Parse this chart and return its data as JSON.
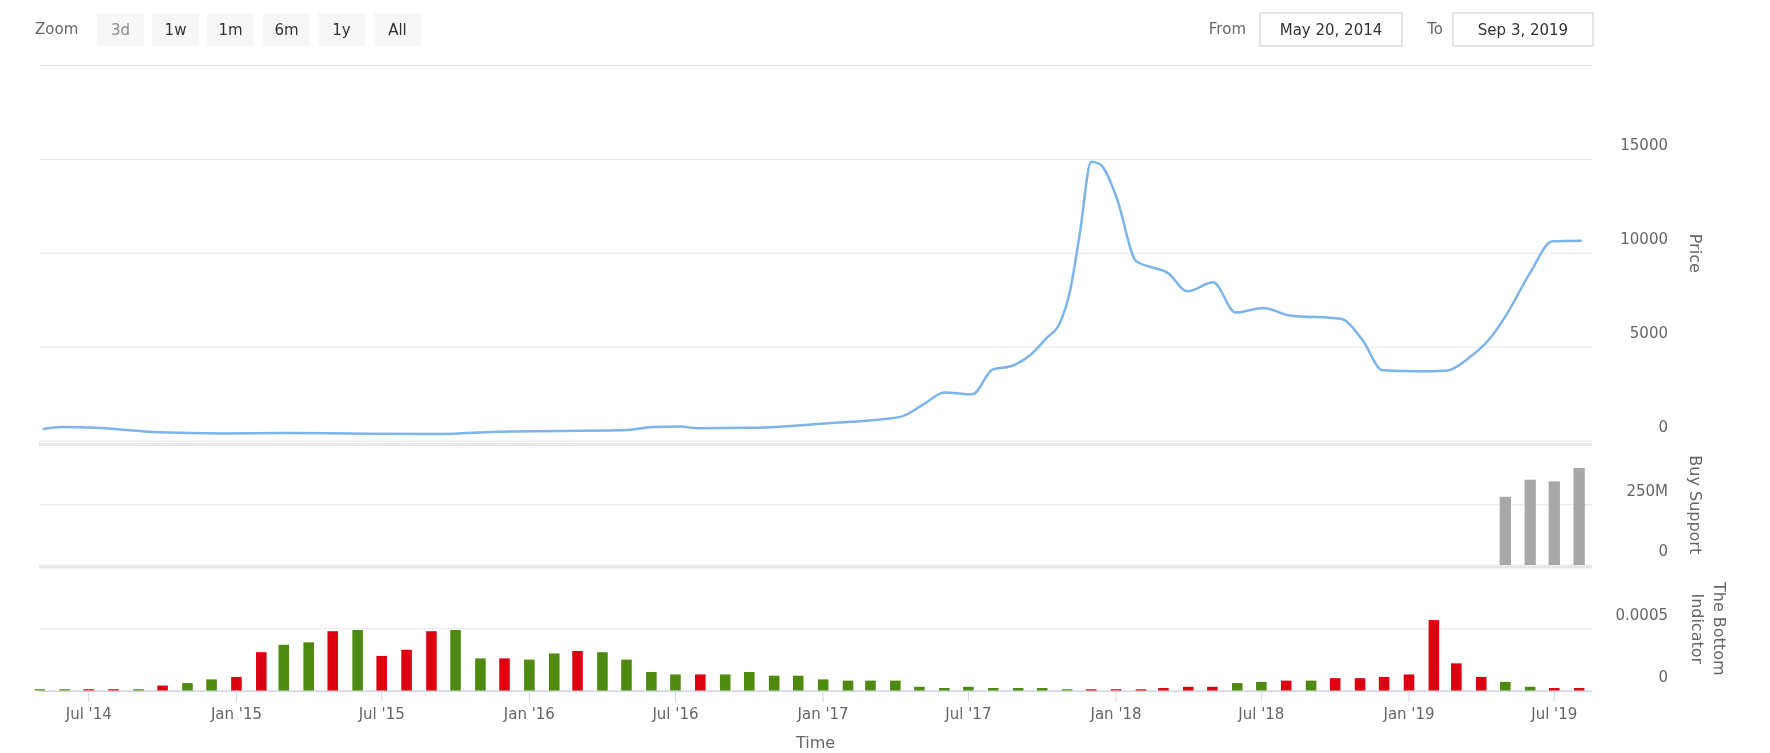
{
  "chart_data": [
    {
      "type": "line",
      "ylabel": "Price",
      "xlim": [
        "2014-04-30",
        "2019-08-17"
      ],
      "ylim": [
        0,
        20000
      ],
      "yticks": [
        0,
        5000,
        10000,
        15000
      ],
      "grid": "y",
      "tick_labels": "y",
      "annotations": [
        "Zoom",
        "3d",
        "1w",
        "1m",
        "6m",
        "1y",
        "All",
        "From",
        "May 20, 2014",
        "To",
        "Sep 3, 2019"
      ],
      "series": [
        {
          "color": "#7cb5ec",
          "x": [
            "2014-05-06",
            "2014-05-28",
            "2014-07-10",
            "2014-09-26",
            "2014-12-14",
            "2015-03-02",
            "2015-05-20",
            "2015-09-11",
            "2015-11-21",
            "2016-05-02",
            "2016-06-01",
            "2016-07-07",
            "2016-07-28",
            "2016-10-01",
            "2017-01-08",
            "2017-03-16",
            "2017-04-09",
            "2017-05-07",
            "2017-06-01",
            "2017-07-06",
            "2017-07-31",
            "2017-08-25",
            "2017-09-18",
            "2017-10-06",
            "2017-10-23",
            "2017-11-05",
            "2017-11-17",
            "2017-12-01",
            "2017-12-12",
            "2018-01-02",
            "2018-01-26",
            "2018-02-13",
            "2018-03-06",
            "2018-03-31",
            "2018-05-02",
            "2018-05-30",
            "2018-07-04",
            "2018-08-05",
            "2018-10-08",
            "2018-11-04",
            "2018-11-29",
            "2019-01-11",
            "2019-02-15",
            "2019-03-18",
            "2019-04-12",
            "2019-05-04",
            "2019-06-01",
            "2019-06-29",
            "2019-08-03"
          ],
          "values": [
            640,
            740,
            700,
            460,
            400,
            430,
            400,
            370,
            490,
            580,
            740,
            770,
            680,
            700,
            950,
            1160,
            1310,
            1980,
            2580,
            2490,
            3800,
            4010,
            4650,
            5470,
            6290,
            8060,
            11100,
            14870,
            14740,
            12920,
            9580,
            9270,
            8970,
            7970,
            8450,
            6840,
            7080,
            6690,
            6510,
            5380,
            3770,
            3710,
            3740,
            4470,
            5470,
            6840,
            8970,
            10640,
            10670
          ]
        }
      ]
    },
    {
      "type": "bar",
      "ylabel": "Buy Support",
      "xlim": [
        "2014-04-30",
        "2019-08-17"
      ],
      "ylim": [
        0,
        500000000
      ],
      "yticks": [
        0,
        {
          "value": 250000000,
          "label": "250M"
        }
      ],
      "grid": "y",
      "tick_labels": "y",
      "series": [
        {
          "color": "#a8a8a8",
          "x": [
            "2019-05",
            "2019-06",
            "2019-07",
            "2019-08"
          ],
          "values": [
            283000000,
            354000000,
            347000000,
            403000000
          ]
        }
      ]
    },
    {
      "type": "bar",
      "ylabel": "The Bottom Indicator",
      "xlabel": "Time",
      "xlim": [
        "2014-04-30",
        "2019-08-17"
      ],
      "ylim": [
        0,
        0.001
      ],
      "yticks": [
        0,
        0.0005
      ],
      "grid": "y",
      "xticks": [
        {
          "value": "2014-07-01",
          "label": "Jul '14"
        },
        {
          "value": "2015-01-01",
          "label": "Jan '15"
        },
        {
          "value": "2015-07-01",
          "label": "Jul '15"
        },
        {
          "value": "2016-01-01",
          "label": "Jan '16"
        },
        {
          "value": "2016-07-01",
          "label": "Jul '16"
        },
        {
          "value": "2017-01-01",
          "label": "Jan '17"
        },
        {
          "value": "2017-07-01",
          "label": "Jul '17"
        },
        {
          "value": "2018-01-01",
          "label": "Jan '18"
        },
        {
          "value": "2018-07-01",
          "label": "Jul '18"
        },
        {
          "value": "2019-01-01",
          "label": "Jan '19"
        },
        {
          "value": "2019-07-01",
          "label": "Jul '19"
        }
      ],
      "x": [
        "2014-05",
        "2014-06",
        "2014-07",
        "2014-08",
        "2014-09",
        "2014-10",
        "2014-11",
        "2014-12",
        "2015-01",
        "2015-02",
        "2015-03",
        "2015-04",
        "2015-05",
        "2015-06",
        "2015-07",
        "2015-08",
        "2015-09",
        "2015-10",
        "2015-11",
        "2015-12",
        "2016-01",
        "2016-02",
        "2016-03",
        "2016-04",
        "2016-05",
        "2016-06",
        "2016-07",
        "2016-08",
        "2016-09",
        "2016-10",
        "2016-11",
        "2016-12",
        "2017-01",
        "2017-02",
        "2017-03",
        "2017-04",
        "2017-05",
        "2017-06",
        "2017-07",
        "2017-08",
        "2017-09",
        "2017-10",
        "2017-11",
        "2017-12",
        "2018-01",
        "2018-02",
        "2018-03",
        "2018-04",
        "2018-05",
        "2018-06",
        "2018-07",
        "2018-08",
        "2018-09",
        "2018-10",
        "2018-11",
        "2018-12",
        "2019-01",
        "2019-02",
        "2019-03",
        "2019-04",
        "2019-05",
        "2019-06",
        "2019-07",
        "2019-08"
      ],
      "values": [
        1e-05,
        1e-05,
        1e-05,
        1e-05,
        1e-05,
        4e-05,
        6e-05,
        9e-05,
        0.00011,
        0.00031,
        0.00037,
        0.00039,
        0.00048,
        0.00049,
        0.00028,
        0.00033,
        0.00048,
        0.00049,
        0.00026,
        0.00026,
        0.00025,
        0.0003,
        0.00032,
        0.00031,
        0.00025,
        0.00015,
        0.00013,
        0.00013,
        0.00013,
        0.00015,
        0.00012,
        0.00012,
        9e-05,
        8e-05,
        8e-05,
        8e-05,
        3e-05,
        2e-05,
        3e-05,
        2e-05,
        2e-05,
        2e-05,
        1e-05,
        1e-05,
        1e-05,
        1e-05,
        2e-05,
        3e-05,
        3e-05,
        6e-05,
        7e-05,
        8e-05,
        8e-05,
        0.0001,
        0.0001,
        0.00011,
        0.00013,
        0.00057,
        0.00022,
        0.00011,
        7e-05,
        3e-05,
        2e-05,
        2e-05
      ],
      "colors": [
        "#4d8a0f",
        "#4d8a0f",
        "#dd0011",
        "#dd0011",
        "#4d8a0f",
        "#dd0011",
        "#4d8a0f",
        "#4d8a0f",
        "#dd0011",
        "#dd0011",
        "#4d8a0f",
        "#4d8a0f",
        "#dd0011",
        "#4d8a0f",
        "#dd0011",
        "#dd0011",
        "#dd0011",
        "#4d8a0f",
        "#4d8a0f",
        "#dd0011",
        "#4d8a0f",
        "#4d8a0f",
        "#dd0011",
        "#4d8a0f",
        "#4d8a0f",
        "#4d8a0f",
        "#4d8a0f",
        "#dd0011",
        "#4d8a0f",
        "#4d8a0f",
        "#4d8a0f",
        "#4d8a0f",
        "#4d8a0f",
        "#4d8a0f",
        "#4d8a0f",
        "#4d8a0f",
        "#4d8a0f",
        "#4d8a0f",
        "#4d8a0f",
        "#4d8a0f",
        "#4d8a0f",
        "#4d8a0f",
        "#4d8a0f",
        "#dd0011",
        "#dd0011",
        "#dd0011",
        "#dd0011",
        "#dd0011",
        "#dd0011",
        "#4d8a0f",
        "#4d8a0f",
        "#dd0011",
        "#4d8a0f",
        "#dd0011",
        "#dd0011",
        "#dd0011",
        "#dd0011",
        "#dd0011",
        "#dd0011",
        "#dd0011",
        "#4d8a0f",
        "#4d8a0f",
        "#dd0011",
        "#dd0011"
      ]
    }
  ]
}
